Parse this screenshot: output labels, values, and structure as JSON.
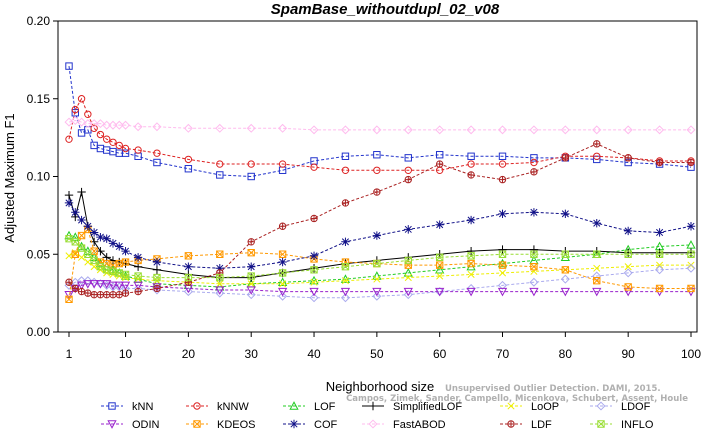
{
  "chart_data": {
    "type": "line",
    "title": "SpamBase_withoutdupl_02_v08",
    "xlabel": "Neighborhood size",
    "ylabel": "Adjusted Maximum F1",
    "xlim": [
      1,
      100
    ],
    "ylim": [
      0.0,
      0.2
    ],
    "xticks": [
      1,
      10,
      20,
      30,
      40,
      50,
      60,
      70,
      80,
      90,
      100
    ],
    "yticks": [
      "0.00",
      "0.05",
      "0.10",
      "0.15",
      "0.20"
    ],
    "legend_position": "bottom",
    "x": [
      1,
      2,
      3,
      4,
      5,
      6,
      7,
      8,
      9,
      10,
      12,
      15,
      20,
      25,
      30,
      35,
      40,
      45,
      50,
      55,
      60,
      65,
      70,
      75,
      80,
      85,
      90,
      95,
      100
    ],
    "series": [
      {
        "name": "kNN",
        "color": "#2233cc",
        "marker": "square",
        "dashed": true,
        "values": [
          0.171,
          0.141,
          0.128,
          0.13,
          0.12,
          0.118,
          0.117,
          0.116,
          0.115,
          0.115,
          0.113,
          0.109,
          0.105,
          0.101,
          0.1,
          0.104,
          0.11,
          0.113,
          0.114,
          0.112,
          0.114,
          0.113,
          0.113,
          0.112,
          0.112,
          0.111,
          0.109,
          0.108,
          0.106
        ]
      },
      {
        "name": "kNNW",
        "color": "#dd2222",
        "marker": "circle",
        "dashed": true,
        "values": [
          0.124,
          0.143,
          0.15,
          0.14,
          0.131,
          0.127,
          0.124,
          0.122,
          0.12,
          0.118,
          0.117,
          0.115,
          0.111,
          0.108,
          0.108,
          0.108,
          0.106,
          0.104,
          0.104,
          0.104,
          0.104,
          0.108,
          0.108,
          0.109,
          0.113,
          0.113,
          0.112,
          0.11,
          0.11
        ]
      },
      {
        "name": "LOF",
        "color": "#22cc22",
        "marker": "triangle-up",
        "dashed": true,
        "values": [
          0.062,
          0.061,
          0.055,
          0.052,
          0.048,
          0.044,
          0.042,
          0.04,
          0.038,
          0.036,
          0.034,
          0.031,
          0.03,
          0.029,
          0.031,
          0.032,
          0.033,
          0.034,
          0.036,
          0.038,
          0.04,
          0.042,
          0.044,
          0.046,
          0.048,
          0.05,
          0.053,
          0.055,
          0.056
        ]
      },
      {
        "name": "SimplifiedLOF",
        "color": "#000000",
        "marker": "plus",
        "dashed": false,
        "values": [
          0.088,
          0.074,
          0.09,
          0.068,
          0.058,
          0.052,
          0.048,
          0.046,
          0.045,
          0.044,
          0.042,
          0.04,
          0.037,
          0.035,
          0.035,
          0.038,
          0.041,
          0.044,
          0.046,
          0.048,
          0.05,
          0.052,
          0.053,
          0.053,
          0.052,
          0.052,
          0.051,
          0.051,
          0.051
        ]
      },
      {
        "name": "LoOP",
        "color": "#eeee00",
        "marker": "x",
        "dashed": true,
        "values": [
          0.049,
          0.051,
          0.048,
          0.045,
          0.042,
          0.04,
          0.038,
          0.037,
          0.036,
          0.035,
          0.034,
          0.033,
          0.032,
          0.031,
          0.031,
          0.031,
          0.032,
          0.033,
          0.034,
          0.035,
          0.036,
          0.037,
          0.038,
          0.039,
          0.04,
          0.041,
          0.042,
          0.043,
          0.043
        ]
      },
      {
        "name": "LDOF",
        "color": "#aaaaee",
        "marker": "diamond",
        "dashed": true,
        "values": [
          0.03,
          0.032,
          0.033,
          0.033,
          0.032,
          0.031,
          0.03,
          0.029,
          0.029,
          0.028,
          0.028,
          0.027,
          0.026,
          0.025,
          0.024,
          0.023,
          0.022,
          0.022,
          0.023,
          0.024,
          0.026,
          0.028,
          0.03,
          0.032,
          0.034,
          0.036,
          0.038,
          0.04,
          0.041
        ]
      },
      {
        "name": "ODIN",
        "color": "#9922cc",
        "marker": "triangle-down",
        "dashed": true,
        "values": [
          0.024,
          0.028,
          0.03,
          0.031,
          0.031,
          0.031,
          0.031,
          0.03,
          0.03,
          0.03,
          0.03,
          0.029,
          0.028,
          0.027,
          0.027,
          0.026,
          0.026,
          0.026,
          0.026,
          0.026,
          0.026,
          0.026,
          0.026,
          0.026,
          0.026,
          0.026,
          0.026,
          0.026,
          0.026
        ]
      },
      {
        "name": "KDEOS",
        "color": "#ff9900",
        "marker": "square-x",
        "dashed": true,
        "values": [
          0.021,
          0.05,
          0.062,
          0.066,
          0.052,
          0.045,
          0.044,
          0.043,
          0.044,
          0.045,
          0.046,
          0.047,
          0.049,
          0.05,
          0.051,
          0.05,
          0.047,
          0.045,
          0.044,
          0.043,
          0.043,
          0.044,
          0.043,
          0.042,
          0.04,
          0.033,
          0.029,
          0.028,
          0.028
        ]
      },
      {
        "name": "COF",
        "color": "#111188",
        "marker": "asterisk",
        "dashed": true,
        "values": [
          0.083,
          0.077,
          0.072,
          0.068,
          0.064,
          0.061,
          0.06,
          0.057,
          0.055,
          0.052,
          0.048,
          0.045,
          0.042,
          0.041,
          0.042,
          0.045,
          0.049,
          0.058,
          0.062,
          0.066,
          0.069,
          0.072,
          0.076,
          0.077,
          0.076,
          0.07,
          0.065,
          0.064,
          0.068
        ]
      },
      {
        "name": "FastABOD",
        "color": "#ffbbee",
        "marker": "diamond",
        "dashed": true,
        "values": [
          0.135,
          0.136,
          0.135,
          0.134,
          0.134,
          0.134,
          0.133,
          0.133,
          0.133,
          0.133,
          0.132,
          0.132,
          0.131,
          0.131,
          0.131,
          0.131,
          0.13,
          0.13,
          0.13,
          0.13,
          0.13,
          0.13,
          0.13,
          0.13,
          0.13,
          0.13,
          0.13,
          0.13,
          0.13
        ]
      },
      {
        "name": "LDF",
        "color": "#aa2222",
        "marker": "circle-plus",
        "dashed": true,
        "values": [
          0.032,
          0.028,
          0.026,
          0.025,
          0.024,
          0.024,
          0.024,
          0.024,
          0.024,
          0.025,
          0.026,
          0.028,
          0.032,
          0.038,
          0.058,
          0.068,
          0.073,
          0.083,
          0.09,
          0.098,
          0.108,
          0.101,
          0.098,
          0.103,
          0.112,
          0.121,
          0.112,
          0.109,
          0.109
        ]
      },
      {
        "name": "INFLO",
        "color": "#99dd33",
        "marker": "square-x",
        "dashed": true,
        "values": [
          0.06,
          0.058,
          0.054,
          0.05,
          0.046,
          0.042,
          0.04,
          0.039,
          0.038,
          0.037,
          0.036,
          0.035,
          0.035,
          0.035,
          0.036,
          0.038,
          0.04,
          0.042,
          0.044,
          0.046,
          0.048,
          0.049,
          0.05,
          0.05,
          0.05,
          0.05,
          0.05,
          0.05,
          0.05
        ]
      }
    ]
  },
  "watermark": {
    "line1": "Unsupervised Outlier Detection. DAMI, 2015.",
    "line2": "Campos, Zimek, Sander, Campello, Micenkova, Schubert, Assent, Houle"
  }
}
